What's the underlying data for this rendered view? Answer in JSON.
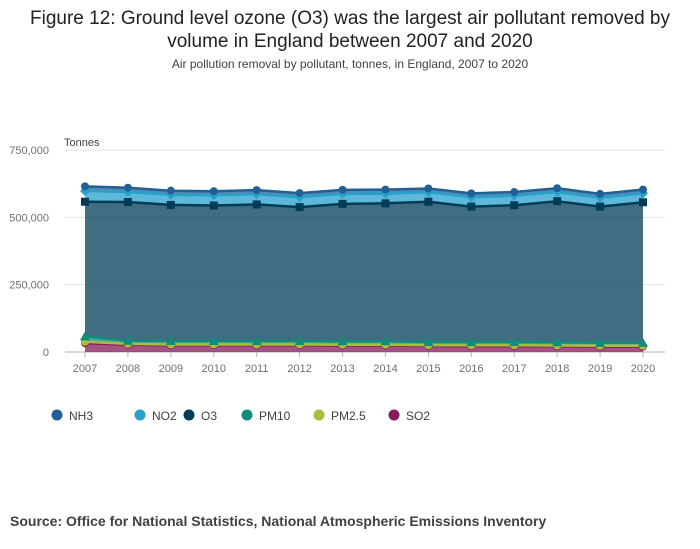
{
  "header": {
    "title_line1": "Figure 12: Ground level ozone (O3) was the largest air pollutant removed by",
    "title_line2": "volume in England between 2007 and 2020",
    "subtitle": "Air pollution removal by pollutant, tonnes, in England, 2007 to 2020"
  },
  "footer": {
    "source": "Source: Office for National Statistics, National Atmospheric Emissions Inventory"
  },
  "chart_data": {
    "type": "area",
    "stacked": true,
    "ylabel": "Tonnes",
    "ylim": [
      0,
      750000
    ],
    "yticks": [
      0,
      250000,
      500000,
      750000
    ],
    "ytick_labels": [
      "0",
      "250,000",
      "500,000",
      "750,000"
    ],
    "x": [
      "2007",
      "2008",
      "2009",
      "2010",
      "2011",
      "2012",
      "2013",
      "2014",
      "2015",
      "2016",
      "2017",
      "2018",
      "2019",
      "2020"
    ],
    "legend_position": "bottom-left",
    "grid": true,
    "series": [
      {
        "name": "SO2",
        "color": "#871a5b",
        "marker": "circle",
        "values": [
          33000,
          27000,
          25000,
          25000,
          25000,
          25000,
          24000,
          24000,
          22000,
          22000,
          22000,
          21000,
          20000,
          20000
        ]
      },
      {
        "name": "PM2.5",
        "color": "#a8bd3a",
        "marker": "circle",
        "values": [
          5000,
          3000,
          3000,
          3000,
          3000,
          3000,
          3000,
          3000,
          3000,
          3000,
          3000,
          3000,
          3000,
          3000
        ]
      },
      {
        "name": "PM10",
        "color": "#118c7b",
        "marker": "triangle",
        "values": [
          20000,
          12000,
          13000,
          13000,
          13000,
          13000,
          13000,
          13000,
          12000,
          12000,
          12000,
          12000,
          11000,
          11000
        ]
      },
      {
        "name": "O3",
        "color": "#003c57",
        "marker": "square",
        "values": [
          500000,
          515000,
          505000,
          503000,
          507000,
          497000,
          510000,
          512000,
          521000,
          503000,
          508000,
          524000,
          506000,
          522000
        ]
      },
      {
        "name": "NO2",
        "color": "#27a0cc",
        "marker": "diamond",
        "values": [
          40000,
          37000,
          38000,
          38000,
          38000,
          37000,
          37000,
          36000,
          35000,
          35000,
          35000,
          34000,
          33000,
          33000
        ]
      },
      {
        "name": "NH3",
        "color": "#206095",
        "marker": "circle",
        "values": [
          17000,
          16000,
          15000,
          15000,
          15000,
          15000,
          15000,
          15000,
          14000,
          14000,
          14000,
          14000,
          14000,
          14000
        ]
      }
    ],
    "legend_order": [
      "NH3",
      "NO2",
      "O3",
      "PM10",
      "PM2.5",
      "SO2"
    ]
  }
}
